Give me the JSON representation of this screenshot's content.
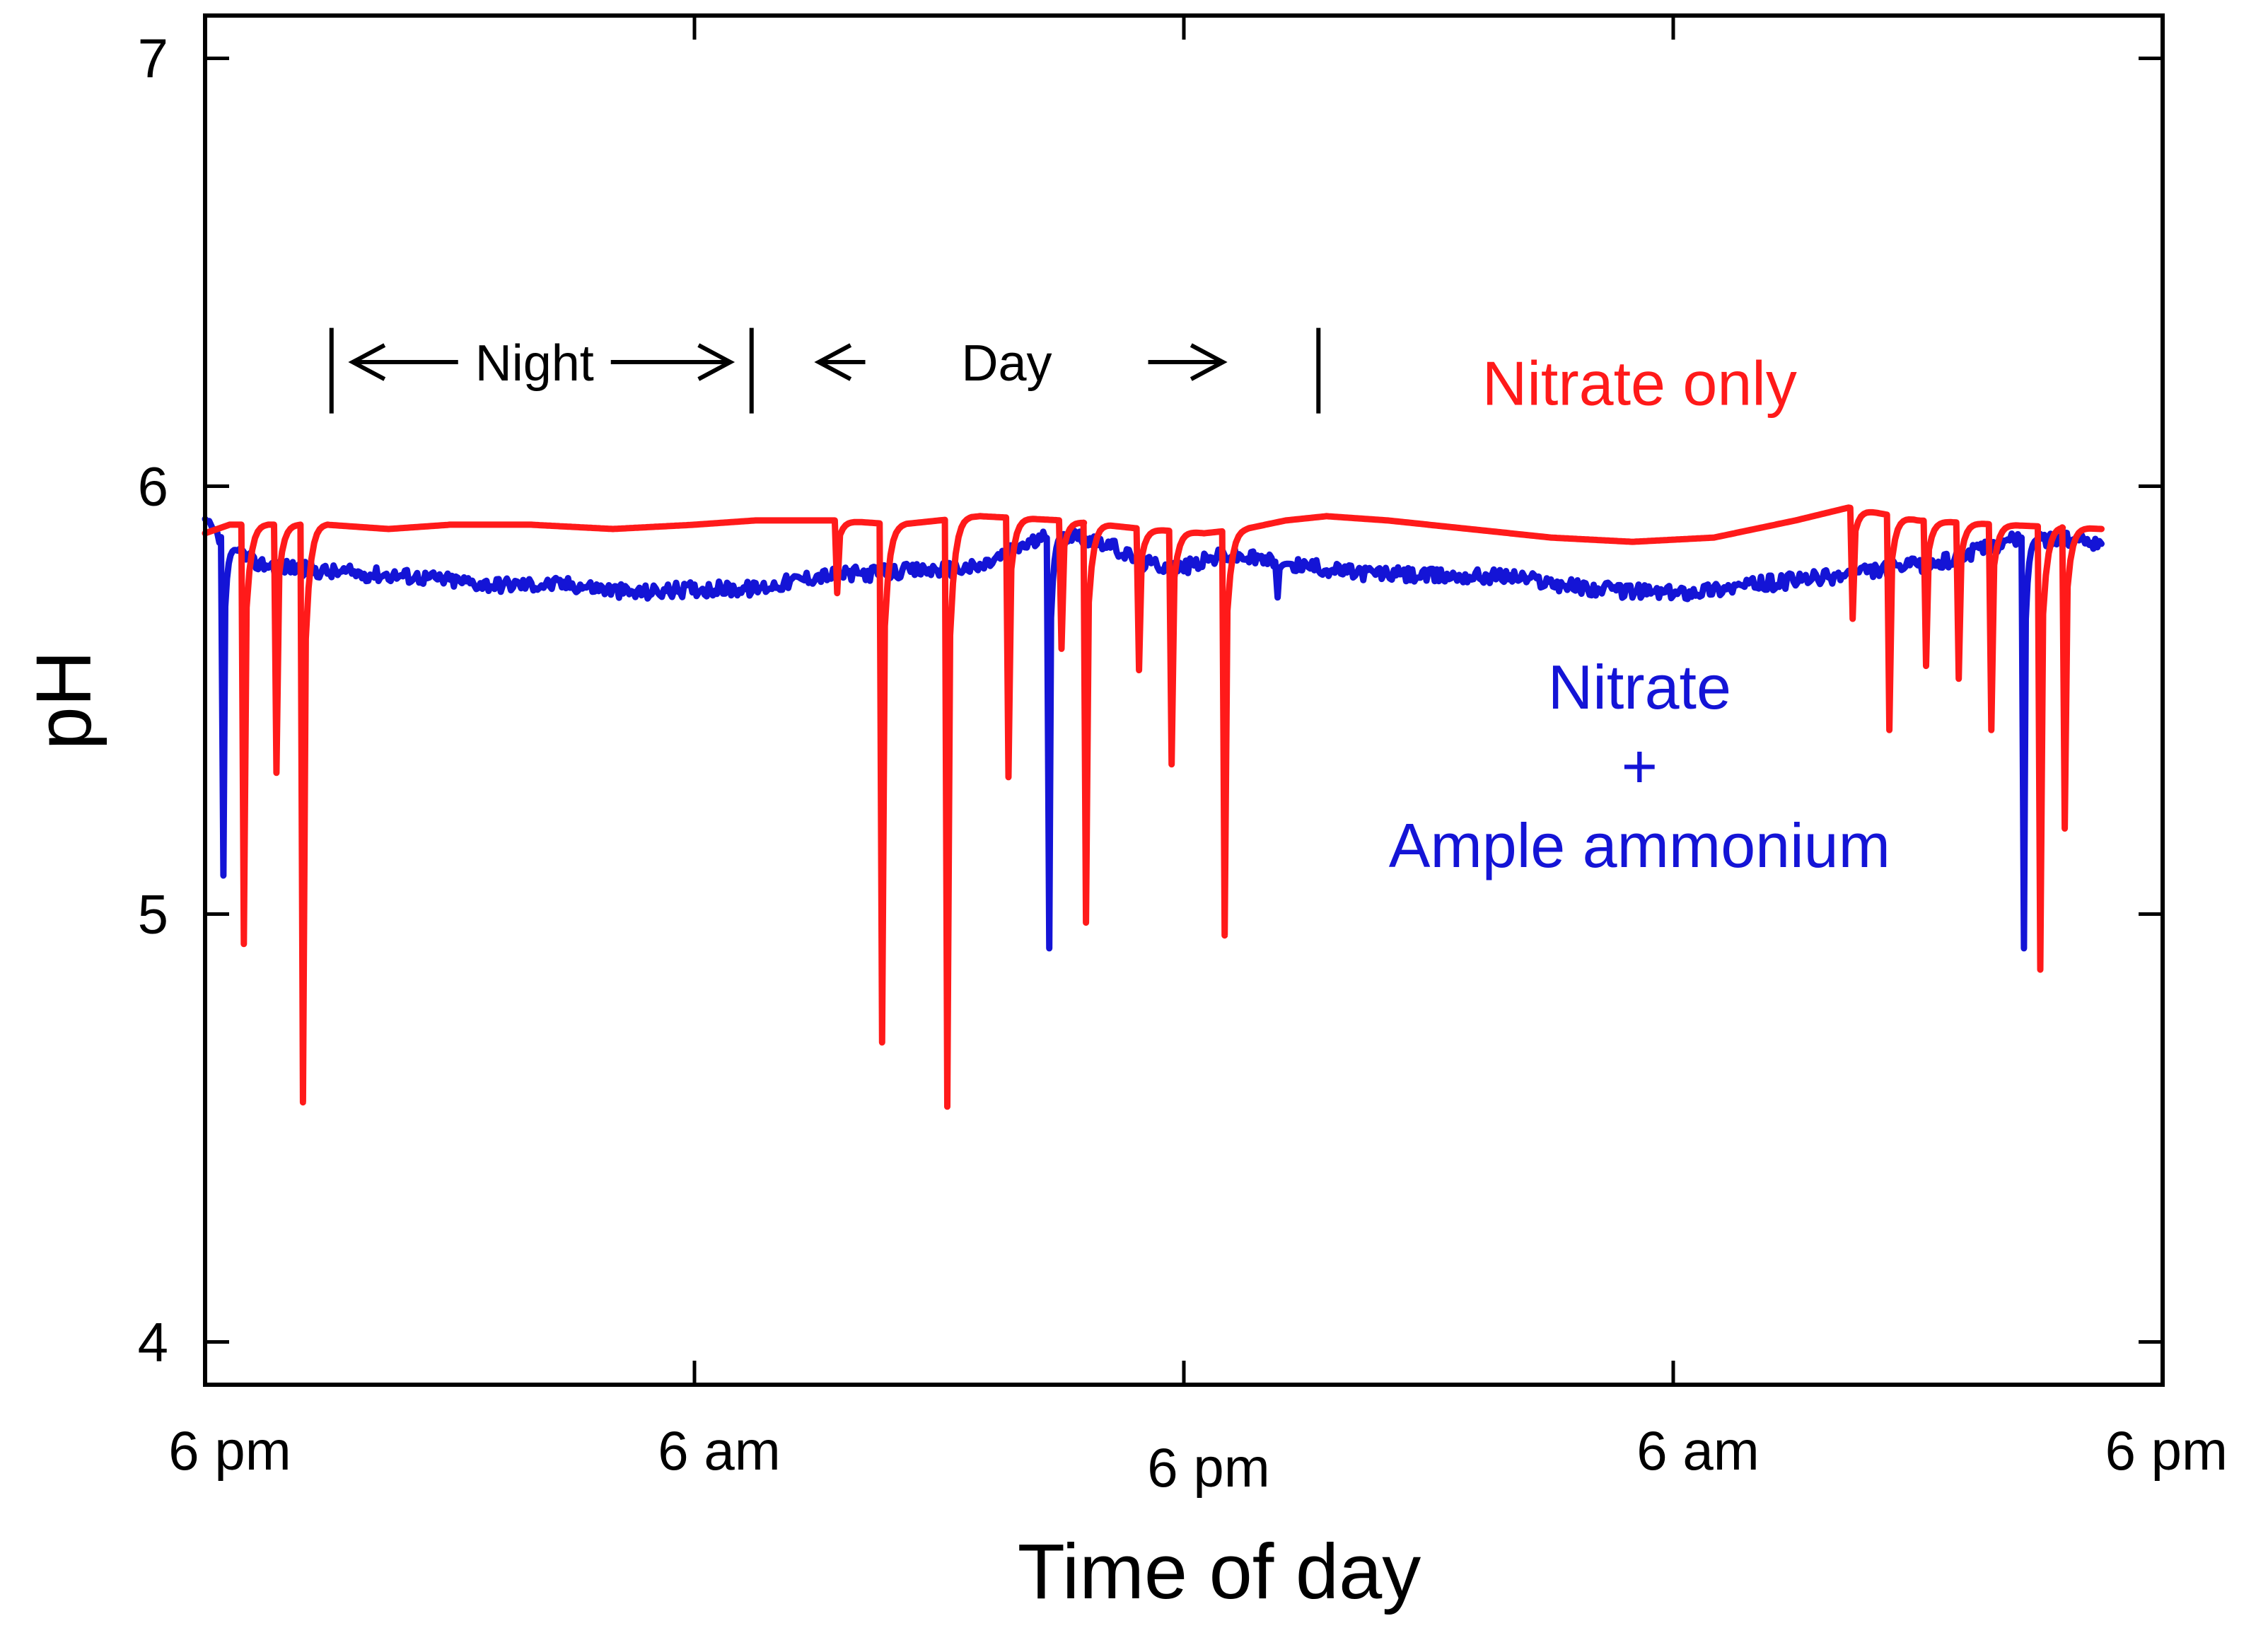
{
  "chart_data": {
    "type": "line",
    "title": "",
    "xlabel": "Time of day",
    "ylabel": "pH",
    "xlim": [
      0,
      48
    ],
    "ylim": [
      3.9,
      7.1
    ],
    "x_unit": "hours since 6 pm",
    "y_ticks": [
      {
        "value": 4,
        "label": "4"
      },
      {
        "value": 5,
        "label": "5"
      },
      {
        "value": 6,
        "label": "6"
      },
      {
        "value": 7,
        "label": "7"
      }
    ],
    "x_ticks": [
      {
        "value": 0,
        "label": "6 pm"
      },
      {
        "value": 12,
        "label": "6 am"
      },
      {
        "value": 24,
        "label": "6 pm"
      },
      {
        "value": 36,
        "label": "6 am"
      },
      {
        "value": 48,
        "label": "6 pm"
      }
    ],
    "phase_markers": [
      3.1,
      13.4,
      27.3
    ],
    "phases": [
      {
        "label": "Night",
        "start": 3.1,
        "end": 13.4,
        "y": 6.29
      },
      {
        "label": "Day",
        "start": 13.4,
        "end": 27.3,
        "y": 6.29
      }
    ],
    "series": [
      {
        "name": "Nitrate only",
        "label_lines": [
          "Nitrate only"
        ],
        "label_x": 35,
        "label_y": 6.19,
        "color": "#ff1a1a",
        "baseline": [
          [
            0,
            5.89
          ],
          [
            0.6,
            5.91
          ],
          [
            2,
            5.91
          ],
          [
            3,
            5.91
          ],
          [
            4.5,
            5.9
          ],
          [
            6,
            5.91
          ],
          [
            8,
            5.91
          ],
          [
            10,
            5.9
          ],
          [
            12,
            5.91
          ],
          [
            13.5,
            5.92
          ],
          [
            15.5,
            5.92
          ],
          [
            17,
            5.91
          ],
          [
            19,
            5.93
          ],
          [
            21,
            5.92
          ],
          [
            23,
            5.9
          ],
          [
            24.5,
            5.89
          ],
          [
            25.5,
            5.9
          ],
          [
            26.5,
            5.92
          ],
          [
            27.5,
            5.93
          ],
          [
            29,
            5.92
          ],
          [
            31,
            5.9
          ],
          [
            33,
            5.88
          ],
          [
            35,
            5.87
          ],
          [
            37,
            5.88
          ],
          [
            39,
            5.92
          ],
          [
            40.3,
            5.95
          ],
          [
            42,
            5.92
          ],
          [
            44,
            5.91
          ],
          [
            46.5,
            5.9
          ]
        ],
        "dips": [
          {
            "x": 0.95,
            "y": 4.93
          },
          {
            "x": 1.75,
            "y": 5.33
          },
          {
            "x": 2.4,
            "y": 4.56
          },
          {
            "x": 15.5,
            "y": 5.75
          },
          {
            "x": 16.6,
            "y": 4.7
          },
          {
            "x": 18.2,
            "y": 4.55
          },
          {
            "x": 19.7,
            "y": 5.32
          },
          {
            "x": 21.0,
            "y": 5.62
          },
          {
            "x": 21.6,
            "y": 4.98
          },
          {
            "x": 22.9,
            "y": 5.57
          },
          {
            "x": 23.7,
            "y": 5.35
          },
          {
            "x": 25.0,
            "y": 4.95
          },
          {
            "x": 40.4,
            "y": 5.69
          },
          {
            "x": 41.3,
            "y": 5.43
          },
          {
            "x": 42.2,
            "y": 5.58
          },
          {
            "x": 43.0,
            "y": 5.55
          },
          {
            "x": 43.8,
            "y": 5.43
          },
          {
            "x": 45.0,
            "y": 4.87
          },
          {
            "x": 45.6,
            "y": 5.2
          }
        ]
      },
      {
        "name": "Nitrate + Ample ammonium",
        "label_lines": [
          "Nitrate",
          "+",
          "Ample ammonium"
        ],
        "label_x": 35,
        "label_y": 5.48,
        "color": "#1414d6",
        "baseline": [
          [
            0,
            5.91
          ],
          [
            0.4,
            5.88
          ],
          [
            1.2,
            5.82
          ],
          [
            3,
            5.8
          ],
          [
            5,
            5.79
          ],
          [
            7,
            5.77
          ],
          [
            9,
            5.77
          ],
          [
            10.5,
            5.75
          ],
          [
            12,
            5.76
          ],
          [
            13.5,
            5.76
          ],
          [
            15,
            5.79
          ],
          [
            17,
            5.8
          ],
          [
            19,
            5.81
          ],
          [
            20,
            5.86
          ],
          [
            21,
            5.89
          ],
          [
            22,
            5.87
          ],
          [
            23,
            5.82
          ],
          [
            24,
            5.81
          ],
          [
            25,
            5.84
          ],
          [
            26.5,
            5.82
          ],
          [
            28,
            5.8
          ],
          [
            30,
            5.79
          ],
          [
            32,
            5.79
          ],
          [
            34,
            5.76
          ],
          [
            36,
            5.75
          ],
          [
            38,
            5.77
          ],
          [
            40,
            5.79
          ],
          [
            41.5,
            5.81
          ],
          [
            42.5,
            5.82
          ],
          [
            43.5,
            5.85
          ],
          [
            44.5,
            5.88
          ],
          [
            46.5,
            5.87
          ]
        ],
        "dips": [
          {
            "x": 0.45,
            "y": 5.09
          },
          {
            "x": 20.7,
            "y": 4.92
          },
          {
            "x": 26.3,
            "y": 5.74
          },
          {
            "x": 44.6,
            "y": 4.92
          }
        ]
      }
    ]
  }
}
